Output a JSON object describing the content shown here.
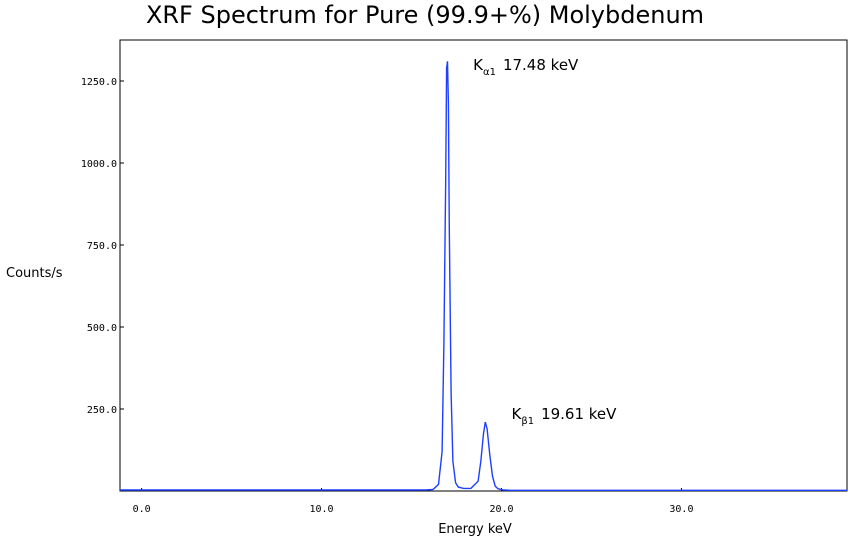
{
  "chart_data": {
    "type": "line",
    "title": "XRF Spectrum for Pure (99.9+%) Molybdenum",
    "xlabel": "Energy keV",
    "ylabel": "Counts/s",
    "xlim": [
      -1.2,
      39.2
    ],
    "ylim": [
      0,
      1375
    ],
    "x_ticks": [
      0,
      10,
      20,
      30
    ],
    "x_tick_labels": [
      "0.0",
      "10.0",
      "20.0",
      "30.0"
    ],
    "y_ticks": [
      250,
      500,
      750,
      1000,
      1250
    ],
    "y_tick_labels": [
      "250.0",
      "500.0",
      "750.0",
      "1000.0",
      "1250.0"
    ],
    "grid": false,
    "legend": "none",
    "series_color": "#1f3fff",
    "series": [
      {
        "x": [
          -1.2,
          15.8,
          16.2,
          16.5,
          16.7,
          16.8,
          16.9,
          16.95,
          17.0,
          17.05,
          17.1,
          17.2,
          17.3,
          17.45,
          17.6,
          17.9,
          18.3,
          18.7,
          18.85,
          19.0,
          19.1,
          19.2,
          19.35,
          19.5,
          19.65,
          19.8,
          20.1,
          20.5,
          39.2
        ],
        "y": [
          3,
          3,
          5,
          20,
          120,
          450,
          950,
          1290,
          1310,
          1180,
          800,
          300,
          90,
          25,
          12,
          8,
          8,
          30,
          90,
          175,
          210,
          190,
          110,
          45,
          15,
          7,
          3,
          2,
          2
        ]
      }
    ],
    "annotations": [
      {
        "main": "K",
        "sub": "α1",
        "value": "17.48 keV",
        "x": 17.48,
        "y": 1290
      },
      {
        "main": "K",
        "sub": "β1",
        "value": "19.61 keV",
        "x": 19.61,
        "y": 225
      }
    ]
  }
}
